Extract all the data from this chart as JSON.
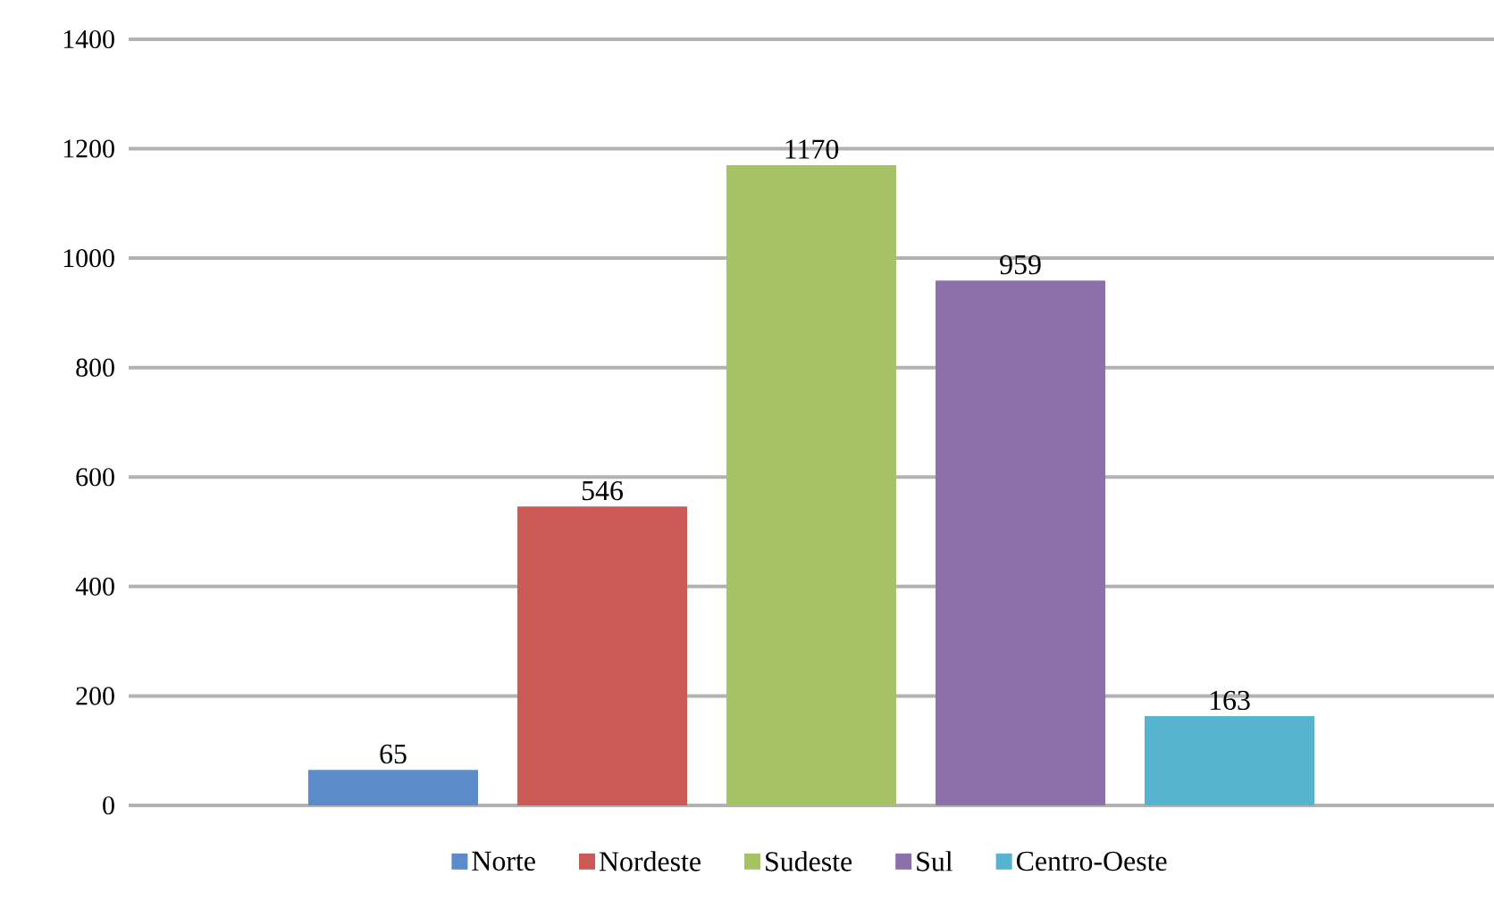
{
  "chart_data": {
    "type": "bar",
    "categories": [
      null
    ],
    "series": [
      {
        "name": "Norte",
        "color": "#5b8bc8",
        "values": [
          65
        ]
      },
      {
        "name": "Nordeste",
        "color": "#cb5a57",
        "values": [
          546
        ]
      },
      {
        "name": "Sudeste",
        "color": "#a5c364",
        "values": [
          1170
        ]
      },
      {
        "name": "Sul",
        "color": "#8b70aa",
        "values": [
          959
        ]
      },
      {
        "name": "Centro-Oeste",
        "color": "#56b4cf",
        "values": [
          163
        ]
      }
    ],
    "ylim": [
      0,
      1400
    ],
    "yticks": [
      0,
      200,
      400,
      600,
      800,
      1000,
      1200,
      1400
    ],
    "grid": "y",
    "legend": "bottom",
    "data_labels": true
  }
}
